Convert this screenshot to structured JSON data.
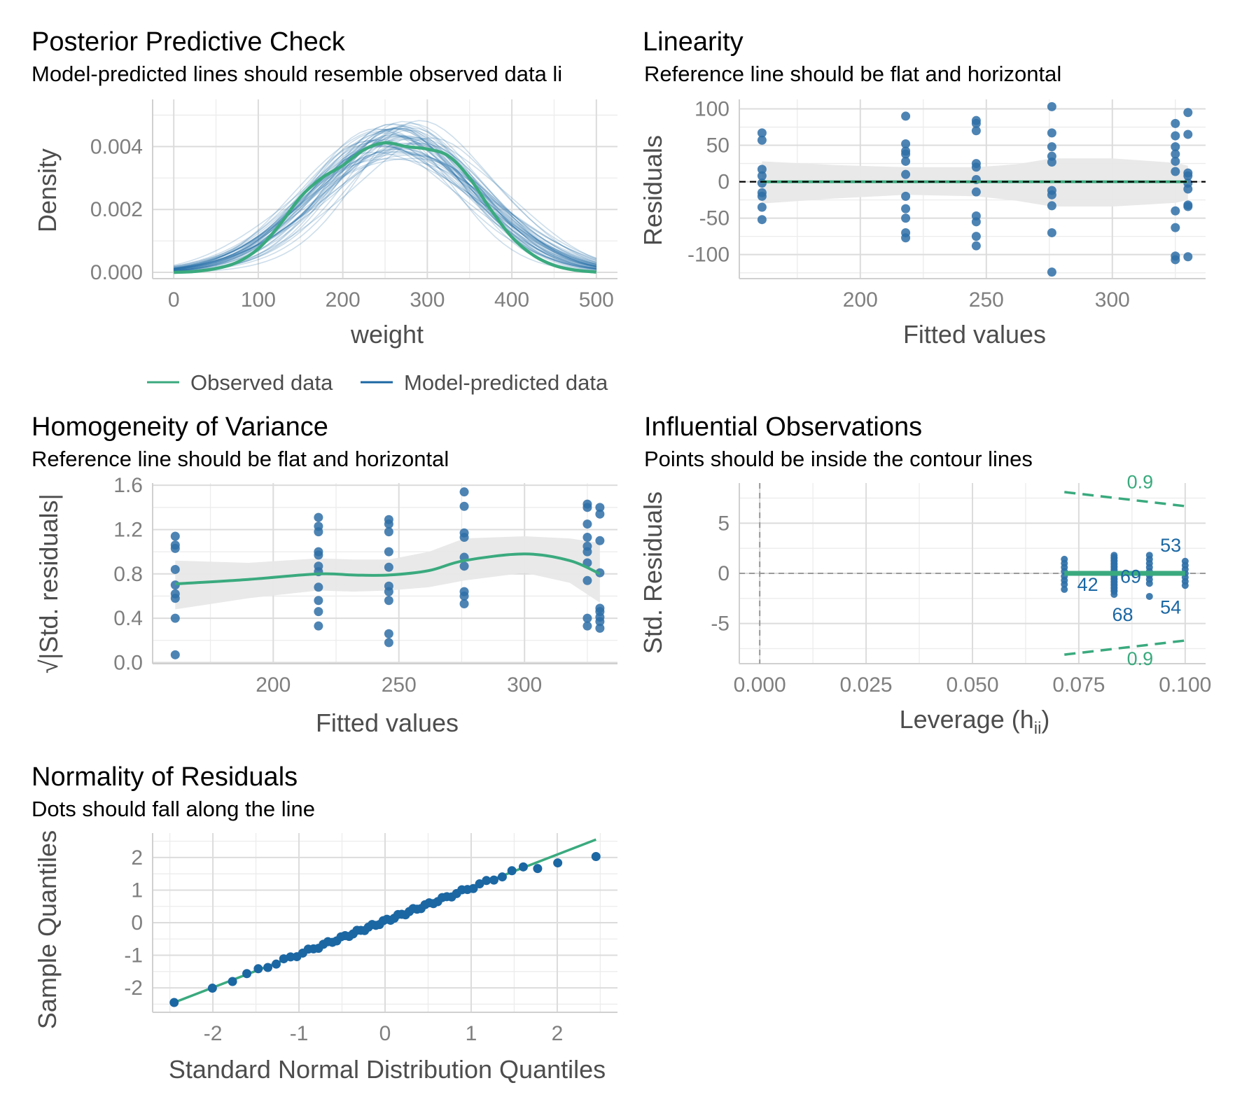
{
  "colors": {
    "observed": "#3aaa7e",
    "predicted": "#1b67a3",
    "points": "#2e6fa7",
    "band": "#e8e8e8",
    "reference": "#000000"
  },
  "legend": {
    "items": [
      {
        "label": "Observed data",
        "color": "#3aaa7e"
      },
      {
        "label": "Model-predicted data",
        "color": "#1b67a3"
      }
    ]
  },
  "chart_data": [
    {
      "id": "ppc",
      "type": "line",
      "title": "Posterior Predictive Check",
      "subtitle": "Model-predicted lines should resemble observed data li",
      "xlabel": "weight",
      "ylabel": "Density",
      "xlim": [
        -25,
        525
      ],
      "ylim": [
        -0.0002,
        0.0055
      ],
      "xticks": [
        0,
        100,
        200,
        300,
        400,
        500
      ],
      "xtick_labels": [
        "0",
        "100",
        "200",
        "300",
        "400",
        "500"
      ],
      "yticks": [
        0,
        0.002,
        0.004
      ],
      "ytick_labels": [
        "0.000",
        "0.002",
        "0.004"
      ],
      "grid": true,
      "observed": {
        "name": "Observed data",
        "x": [
          0,
          25,
          50,
          75,
          100,
          125,
          150,
          175,
          200,
          225,
          250,
          275,
          300,
          325,
          350,
          375,
          400,
          425,
          450,
          475,
          500
        ],
        "y": [
          0.0,
          3e-05,
          0.00012,
          0.00032,
          0.00075,
          0.0015,
          0.0024,
          0.003,
          0.0034,
          0.0039,
          0.00412,
          0.004,
          0.00392,
          0.0037,
          0.003,
          0.002,
          0.00112,
          0.00055,
          0.00022,
          7e-05,
          1e-05
        ]
      },
      "predicted": {
        "name": "Model-predicted data",
        "n_draws": 50,
        "mean": 265,
        "sd": 95,
        "x_range": [
          0,
          500
        ]
      }
    },
    {
      "id": "linearity",
      "type": "scatter",
      "title": "Linearity",
      "subtitle": "Reference line should be flat and horizontal",
      "xlabel": "Fitted values",
      "ylabel": "Residuals",
      "xlim": [
        152,
        337
      ],
      "ylim": [
        -133,
        113
      ],
      "xticks": [
        200,
        250,
        300
      ],
      "xtick_labels": [
        "200",
        "250",
        "300"
      ],
      "yticks": [
        -100,
        -50,
        0,
        50,
        100
      ],
      "ytick_labels": [
        "-100",
        "-50",
        "0",
        "50",
        "100"
      ],
      "grid": true,
      "points": [
        [
          161,
          67
        ],
        [
          161,
          57
        ],
        [
          161,
          17
        ],
        [
          161,
          8
        ],
        [
          161,
          -2
        ],
        [
          161,
          -15
        ],
        [
          161,
          -20
        ],
        [
          161,
          -35
        ],
        [
          161,
          -52
        ],
        [
          218,
          90
        ],
        [
          218,
          52
        ],
        [
          218,
          42
        ],
        [
          218,
          38
        ],
        [
          218,
          28
        ],
        [
          218,
          10
        ],
        [
          218,
          -20
        ],
        [
          218,
          -37
        ],
        [
          218,
          -50
        ],
        [
          218,
          -70
        ],
        [
          218,
          -77
        ],
        [
          246,
          84
        ],
        [
          246,
          80
        ],
        [
          246,
          70
        ],
        [
          246,
          25
        ],
        [
          246,
          20
        ],
        [
          246,
          3
        ],
        [
          246,
          -14
        ],
        [
          246,
          -47
        ],
        [
          246,
          -55
        ],
        [
          246,
          -75
        ],
        [
          246,
          -88
        ],
        [
          276,
          103
        ],
        [
          276,
          67
        ],
        [
          276,
          48
        ],
        [
          276,
          35
        ],
        [
          276,
          27
        ],
        [
          276,
          -12
        ],
        [
          276,
          -18
        ],
        [
          276,
          -33
        ],
        [
          276,
          -70
        ],
        [
          276,
          -124
        ],
        [
          325,
          80
        ],
        [
          325,
          63
        ],
        [
          325,
          48
        ],
        [
          325,
          38
        ],
        [
          325,
          28
        ],
        [
          325,
          14
        ],
        [
          325,
          -40
        ],
        [
          325,
          -63
        ],
        [
          325,
          -102
        ],
        [
          325,
          -107
        ],
        [
          330,
          95
        ],
        [
          330,
          65
        ],
        [
          330,
          12
        ],
        [
          330,
          8
        ],
        [
          330,
          -2
        ],
        [
          330,
          -10
        ],
        [
          330,
          -32
        ],
        [
          330,
          -34
        ],
        [
          330,
          -103
        ]
      ],
      "smooth": {
        "x": [
          161,
          330
        ],
        "y": [
          0,
          0
        ]
      },
      "band": {
        "x": [
          161,
          190,
          218,
          246,
          262,
          276,
          300,
          325,
          330
        ],
        "upper": [
          28,
          23,
          20,
          20,
          24,
          32,
          32,
          26,
          22
        ],
        "lower": [
          -30,
          -23,
          -18,
          -20,
          -26,
          -34,
          -34,
          -29,
          -25
        ]
      },
      "reference_y": 0
    },
    {
      "id": "homogeneity",
      "type": "scatter",
      "title": "Homogeneity of Variance",
      "subtitle": "Reference line should be flat and horizontal",
      "xlabel": "Fitted values",
      "ylabel": "|Std. residuals|",
      "ylabel_prefix": "√",
      "xlim": [
        152,
        337
      ],
      "ylim": [
        -0.01,
        1.62
      ],
      "xticks": [
        200,
        250,
        300
      ],
      "xtick_labels": [
        "200",
        "250",
        "300"
      ],
      "yticks": [
        0,
        0.4,
        0.8,
        1.2,
        1.6
      ],
      "ytick_labels": [
        "0.0",
        "0.4",
        "0.8",
        "1.2",
        "1.6"
      ],
      "grid": true,
      "points": [
        [
          161,
          1.14
        ],
        [
          161,
          1.06
        ],
        [
          161,
          1.03
        ],
        [
          161,
          0.84
        ],
        [
          161,
          0.7
        ],
        [
          161,
          0.62
        ],
        [
          161,
          0.58
        ],
        [
          161,
          0.4
        ],
        [
          161,
          0.07
        ],
        [
          218,
          1.31
        ],
        [
          218,
          1.23
        ],
        [
          218,
          1.18
        ],
        [
          218,
          1.0
        ],
        [
          218,
          0.97
        ],
        [
          218,
          0.87
        ],
        [
          218,
          0.82
        ],
        [
          218,
          0.68
        ],
        [
          218,
          0.56
        ],
        [
          218,
          0.46
        ],
        [
          218,
          0.33
        ],
        [
          246,
          1.29
        ],
        [
          246,
          1.25
        ],
        [
          246,
          1.18
        ],
        [
          246,
          1.0
        ],
        [
          246,
          0.86
        ],
        [
          246,
          0.69
        ],
        [
          246,
          0.64
        ],
        [
          246,
          0.56
        ],
        [
          246,
          0.26
        ],
        [
          246,
          0.18
        ],
        [
          276,
          1.54
        ],
        [
          276,
          1.41
        ],
        [
          276,
          1.17
        ],
        [
          276,
          1.13
        ],
        [
          276,
          0.95
        ],
        [
          276,
          0.87
        ],
        [
          276,
          0.64
        ],
        [
          276,
          0.6
        ],
        [
          276,
          0.53
        ],
        [
          325,
          1.43
        ],
        [
          325,
          1.4
        ],
        [
          325,
          1.25
        ],
        [
          325,
          1.13
        ],
        [
          325,
          1.05
        ],
        [
          325,
          1.0
        ],
        [
          325,
          0.9
        ],
        [
          325,
          0.74
        ],
        [
          325,
          0.4
        ],
        [
          325,
          0.33
        ],
        [
          330,
          1.4
        ],
        [
          330,
          1.34
        ],
        [
          330,
          1.1
        ],
        [
          330,
          0.81
        ],
        [
          330,
          0.49
        ],
        [
          330,
          0.46
        ],
        [
          330,
          0.41
        ],
        [
          330,
          0.37
        ],
        [
          330,
          0.31
        ]
      ],
      "smooth": {
        "x": [
          161,
          190,
          218,
          232,
          246,
          262,
          276,
          300,
          318,
          330
        ],
        "y": [
          0.71,
          0.75,
          0.8,
          0.79,
          0.79,
          0.83,
          0.92,
          0.98,
          0.92,
          0.8
        ]
      },
      "band": {
        "x": [
          161,
          190,
          218,
          232,
          246,
          262,
          276,
          300,
          318,
          330
        ],
        "upper": [
          0.92,
          0.9,
          0.94,
          0.93,
          0.93,
          1.0,
          1.12,
          1.14,
          1.12,
          1.08
        ],
        "lower": [
          0.48,
          0.58,
          0.65,
          0.64,
          0.65,
          0.68,
          0.74,
          0.81,
          0.72,
          0.54
        ]
      }
    },
    {
      "id": "influential",
      "type": "scatter",
      "title": "Influential Observations",
      "subtitle": "Points should be inside the contour lines",
      "xlabel": "Leverage (h",
      "xlabel_sub": "ii",
      "xlabel_end": ")",
      "ylabel": "Std. Residuals",
      "xlim": [
        -0.0048,
        0.1048
      ],
      "ylim": [
        -9.0,
        9.0
      ],
      "xticks": [
        0,
        0.025,
        0.05,
        0.075,
        0.1
      ],
      "xtick_labels": [
        "0.000",
        "0.025",
        "0.050",
        "0.075",
        "0.100"
      ],
      "yticks": [
        -5,
        0,
        5
      ],
      "ytick_labels": [
        "-5",
        "0",
        "5"
      ],
      "grid": true,
      "columns": [
        {
          "x": 0.0716,
          "y": [
            1.4,
            1.0,
            0.6,
            0.2,
            -0.3,
            -0.7,
            -1.1,
            -1.6
          ]
        },
        {
          "x": 0.0833,
          "y": [
            1.8,
            1.5,
            1.2,
            0.9,
            0.6,
            0.3,
            0.0,
            -0.3,
            -0.6,
            -0.9,
            -1.2,
            -1.5,
            -1.8,
            -2.1
          ]
        },
        {
          "x": 0.0833,
          "y": [
            1.6,
            1.3,
            1.0,
            0.7,
            0.4,
            0.1,
            -0.2,
            -0.5,
            -0.8,
            -1.1,
            -1.4,
            -1.7
          ]
        },
        {
          "x": 0.0916,
          "y": [
            1.8,
            1.4,
            1.0,
            0.6,
            0.2,
            -0.2,
            -0.6,
            -1.0,
            -2.3
          ]
        },
        {
          "x": 0.1,
          "y": [
            1.2,
            0.8,
            0.4,
            0.0,
            -0.4,
            -0.8,
            -1.2
          ]
        }
      ],
      "smooth": {
        "x": [
          0.0716,
          0.1
        ],
        "y": [
          0,
          0
        ]
      },
      "contours": [
        {
          "x": [
            0.0716,
            0.1
          ],
          "y": [
            8.1,
            6.7
          ]
        },
        {
          "x": [
            0.0716,
            0.1
          ],
          "y": [
            -8.1,
            -6.7
          ]
        }
      ],
      "contour_labels": [
        {
          "text": "0.9",
          "x": 0.0894,
          "y": 9.1
        },
        {
          "text": "0.9",
          "x": 0.0894,
          "y": -8.5
        }
      ],
      "point_labels": [
        {
          "text": "53",
          "x": 0.0966,
          "y": 2.8
        },
        {
          "text": "69",
          "x": 0.0872,
          "y": -0.3
        },
        {
          "text": "42",
          "x": 0.0771,
          "y": -1.1
        },
        {
          "text": "68",
          "x": 0.0853,
          "y": -4.1
        },
        {
          "text": "54",
          "x": 0.0966,
          "y": -3.4
        }
      ],
      "vline": 0,
      "hline": 0
    },
    {
      "id": "normality",
      "type": "scatter",
      "title": "Normality of Residuals",
      "subtitle": "Dots should fall along the line",
      "xlabel": "Standard Normal Distribution Quantiles",
      "ylabel": "Sample Quantiles",
      "xlim": [
        -2.7,
        2.7
      ],
      "ylim": [
        -2.75,
        2.75
      ],
      "xticks": [
        -2,
        -1,
        0,
        1,
        2
      ],
      "xtick_labels": [
        "-2",
        "-1",
        "0",
        "1",
        "2"
      ],
      "yticks": [
        -2,
        -1,
        0,
        1,
        2
      ],
      "ytick_labels": [
        "-2",
        "-1",
        "0",
        "1",
        "2"
      ],
      "grid": true,
      "line": {
        "x": [
          -2.45,
          2.45
        ],
        "y": [
          -2.45,
          2.55
        ]
      },
      "n_points": 60,
      "extremes": {
        "min": [
          -2.45,
          -2.45
        ],
        "max": [
          2.45,
          2.03
        ]
      }
    }
  ]
}
